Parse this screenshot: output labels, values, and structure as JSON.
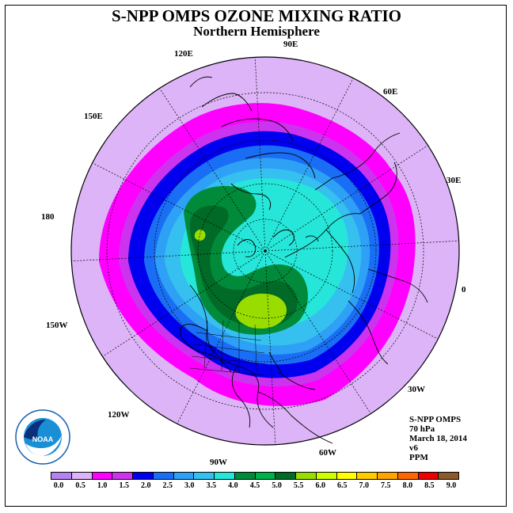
{
  "header": {
    "title": "S-NPP OMPS OZONE MIXING RATIO",
    "subtitle": "Northern Hemisphere"
  },
  "map": {
    "projection": "north polar stereographic",
    "longitude_labels": [
      "90E",
      "60E",
      "30E",
      "0",
      "30W",
      "60W",
      "90W",
      "120W",
      "150W",
      "180",
      "150E",
      "120E"
    ]
  },
  "info": {
    "instrument": "S-NPP OMPS",
    "level": "70 hPa",
    "date": "March 18, 2014",
    "version": "v6",
    "units": "PPM"
  },
  "colorbar": {
    "colors": [
      "#b583f0",
      "#dcb4f7",
      "#ff00ff",
      "#cc33ee",
      "#0000ee",
      "#1a6ef5",
      "#2ea0f5",
      "#35c0f0",
      "#25e6d8",
      "#008a3a",
      "#00b14a",
      "#006a26",
      "#99dd00",
      "#ccff00",
      "#ffff00",
      "#ffcc00",
      "#ffa500",
      "#ff6600",
      "#ee0000",
      "#8b5a2b"
    ],
    "ticks": [
      "0.0",
      "0.5",
      "1.0",
      "1.5",
      "2.0",
      "2.5",
      "3.0",
      "3.5",
      "4.0",
      "4.5",
      "5.0",
      "5.5",
      "6.0",
      "6.5",
      "7.0",
      "7.5",
      "8.0",
      "8.5",
      "9.0"
    ]
  },
  "logo": {
    "text": "NOAA",
    "ring_text": "NATIONAL OCEANIC AND ATMOSPHERIC ADMINISTRATION · U.S. DEPARTMENT OF COMMERCE"
  }
}
